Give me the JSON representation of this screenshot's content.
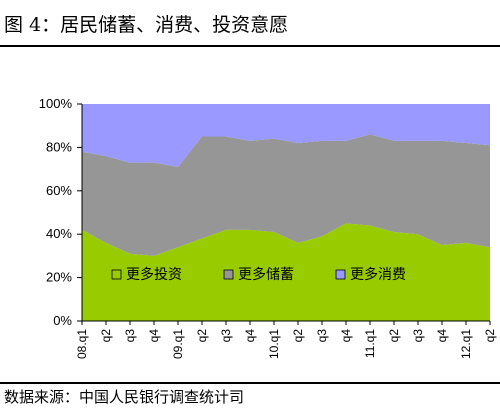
{
  "figure": {
    "title": "图 4：居民储蓄、消费、投资意愿",
    "source": "数据来源：中国人民银行调查统计司"
  },
  "colors": {
    "invest": "#99CC00",
    "savings": "#969696",
    "consume": "#9999FF",
    "frame": "#000000"
  },
  "chart_data": {
    "type": "area",
    "stacked": true,
    "title": "",
    "xlabel": "",
    "ylabel": "",
    "ylim": [
      0,
      100
    ],
    "y_ticks": [
      "0%",
      "20%",
      "40%",
      "60%",
      "80%",
      "100%"
    ],
    "x": [
      "08.q1",
      "q2",
      "q3",
      "q4",
      "09.q1",
      "q2",
      "q3",
      "q4",
      "10.q1",
      "q2",
      "q3",
      "q4",
      "11.q1",
      "q2",
      "q3",
      "q4",
      "12.q1",
      "q2"
    ],
    "legend_position": "inside-bottom",
    "grid": false,
    "series": [
      {
        "name": "更多投资",
        "color_key": "invest",
        "values": [
          42,
          36,
          31,
          30,
          34,
          38,
          42,
          42,
          41,
          36,
          39,
          45,
          44,
          41,
          40,
          35,
          36,
          34
        ]
      },
      {
        "name": "更多储蓄",
        "color_key": "savings",
        "values": [
          36,
          40,
          42,
          43,
          37,
          47,
          43,
          41,
          43,
          46,
          44,
          38,
          42,
          42,
          43,
          48,
          46,
          47
        ]
      },
      {
        "name": "更多消费",
        "color_key": "consume",
        "values": [
          22,
          24,
          27,
          27,
          29,
          15,
          15,
          17,
          16,
          18,
          17,
          17,
          14,
          17,
          17,
          17,
          18,
          19
        ]
      }
    ]
  }
}
